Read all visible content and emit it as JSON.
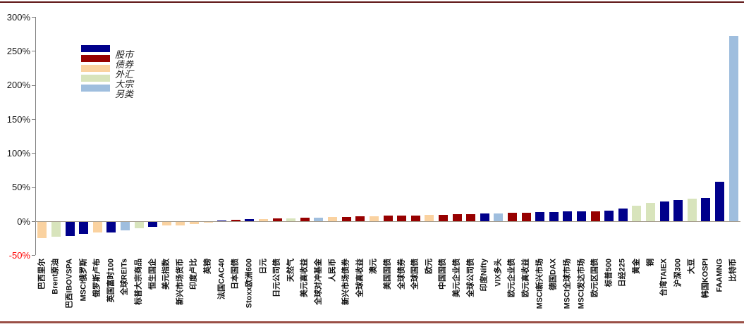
{
  "chart_data": {
    "type": "bar",
    "title": "",
    "xlabel": "",
    "ylabel": "",
    "ylim": [
      -50,
      300
    ],
    "grid": false,
    "legend_position": "upper-left-inside",
    "yticks": [
      {
        "label": "300%",
        "value": 300
      },
      {
        "label": "250%",
        "value": 250
      },
      {
        "label": "200%",
        "value": 200
      },
      {
        "label": "150%",
        "value": 150
      },
      {
        "label": "100%",
        "value": 100
      },
      {
        "label": "50%",
        "value": 50
      },
      {
        "label": "0%",
        "value": 0
      },
      {
        "label": "-50%",
        "value": -50
      }
    ],
    "legend": [
      {
        "key": "stocks",
        "label": "股市",
        "color": "#00008B"
      },
      {
        "key": "bonds",
        "label": "债券",
        "color": "#970000"
      },
      {
        "key": "fx",
        "label": "外汇",
        "color": "#FAD2A0"
      },
      {
        "key": "commodities",
        "label": "大宗",
        "color": "#D8E4BC"
      },
      {
        "key": "alternatives",
        "label": "另类",
        "color": "#9FBEDE"
      }
    ],
    "bars": [
      {
        "label": "巴西里尔",
        "category": "fx",
        "value": -24
      },
      {
        "label": "Brent原油",
        "category": "commodities",
        "value": -22
      },
      {
        "label": "巴西IBOVSPA",
        "category": "stocks",
        "value": -21
      },
      {
        "label": "MSCI俄罗斯",
        "category": "stocks",
        "value": -18
      },
      {
        "label": "俄罗斯卢布",
        "category": "fx",
        "value": -16
      },
      {
        "label": "英国富时100",
        "category": "stocks",
        "value": -15
      },
      {
        "label": "全球REITs",
        "category": "alternatives",
        "value": -12
      },
      {
        "label": "标普大宗商品",
        "category": "commodities",
        "value": -9.5
      },
      {
        "label": "恒生国企",
        "category": "stocks",
        "value": -7
      },
      {
        "label": "美元指数",
        "category": "fx",
        "value": -5.5
      },
      {
        "label": "新兴市场货币",
        "category": "fx",
        "value": -5
      },
      {
        "label": "印度卢比",
        "category": "fx",
        "value": -3.5
      },
      {
        "label": "英镑",
        "category": "fx",
        "value": -1
      },
      {
        "label": "法国CAC40",
        "category": "stocks",
        "value": 1.5
      },
      {
        "label": "日本国债",
        "category": "bonds",
        "value": 2.5
      },
      {
        "label": "Stoxx欧洲600",
        "category": "stocks",
        "value": 3
      },
      {
        "label": "日元",
        "category": "fx",
        "value": 3.5
      },
      {
        "label": "日元公司债",
        "category": "bonds",
        "value": 4
      },
      {
        "label": "天然气",
        "category": "commodities",
        "value": 4.5
      },
      {
        "label": "美元高收益",
        "category": "bonds",
        "value": 5
      },
      {
        "label": "全球对冲基金",
        "category": "alternatives",
        "value": 5.5
      },
      {
        "label": "人民币",
        "category": "fx",
        "value": 6
      },
      {
        "label": "新兴市场债券",
        "category": "bonds",
        "value": 6.5
      },
      {
        "label": "全球高收益",
        "category": "bonds",
        "value": 7
      },
      {
        "label": "澳元",
        "category": "fx",
        "value": 7.5
      },
      {
        "label": "美国国债",
        "category": "bonds",
        "value": 8
      },
      {
        "label": "全球债券",
        "category": "bonds",
        "value": 8.5
      },
      {
        "label": "全球国债",
        "category": "bonds",
        "value": 8.5
      },
      {
        "label": "欧元",
        "category": "fx",
        "value": 9
      },
      {
        "label": "中国国债",
        "category": "bonds",
        "value": 9.5
      },
      {
        "label": "美元企业债",
        "category": "bonds",
        "value": 10
      },
      {
        "label": "全球公司债",
        "category": "bonds",
        "value": 10.5
      },
      {
        "label": "印度Nifty",
        "category": "stocks",
        "value": 11
      },
      {
        "label": "VIX多头",
        "category": "alternatives",
        "value": 11.5
      },
      {
        "label": "欧元企业债",
        "category": "bonds",
        "value": 12
      },
      {
        "label": "欧元高收益",
        "category": "bonds",
        "value": 12.5
      },
      {
        "label": "MSCI新兴市场",
        "category": "stocks",
        "value": 13
      },
      {
        "label": "德国DAX",
        "category": "stocks",
        "value": 13.5
      },
      {
        "label": "MSCI全球市场",
        "category": "stocks",
        "value": 14
      },
      {
        "label": "MSCI发达市场",
        "category": "stocks",
        "value": 14.5
      },
      {
        "label": "欧元区国债",
        "category": "bonds",
        "value": 14.5
      },
      {
        "label": "标普500",
        "category": "stocks",
        "value": 16
      },
      {
        "label": "日经225",
        "category": "stocks",
        "value": 18.5
      },
      {
        "label": "黄金",
        "category": "commodities",
        "value": 23
      },
      {
        "label": "铜",
        "category": "commodities",
        "value": 26.5
      },
      {
        "label": "台湾TAIEX",
        "category": "stocks",
        "value": 29
      },
      {
        "label": "沪深300",
        "category": "stocks",
        "value": 31.5
      },
      {
        "label": "大豆",
        "category": "commodities",
        "value": 33
      },
      {
        "label": "韩国KOSPI",
        "category": "stocks",
        "value": 34.5
      },
      {
        "label": "FAAMNG",
        "category": "stocks",
        "value": 57.5
      },
      {
        "label": "比特币",
        "category": "alternatives",
        "value": 272
      }
    ]
  },
  "axis_colors": {
    "tick_label": "#1a1a1a",
    "negative_tick_label": "#FF0000",
    "axis_line": "#7f7f7f",
    "zero_line": "#a39a8c"
  },
  "frame": {
    "top_line_color": "#5E1515",
    "bottom_line_color": "#9A4F46",
    "background": "#FFFFFF"
  }
}
